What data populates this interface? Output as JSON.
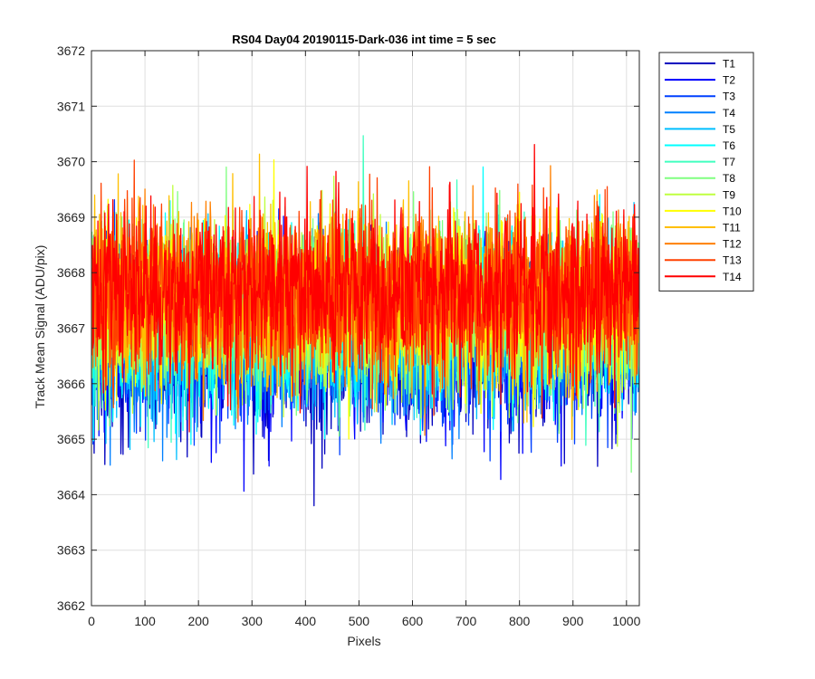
{
  "chart_data": {
    "type": "line",
    "title": "RS04 Day04 20190115-Dark-036 int time = 5 sec",
    "xlabel": "Pixels",
    "ylabel": "Track Mean Signal (ADU/pix)",
    "xlim": [
      0,
      1024
    ],
    "ylim": [
      3662,
      3672
    ],
    "xticks": [
      0,
      100,
      200,
      300,
      400,
      500,
      600,
      700,
      800,
      900,
      1000
    ],
    "yticks": [
      3662,
      3663,
      3664,
      3665,
      3666,
      3667,
      3668,
      3669,
      3670,
      3671,
      3672
    ],
    "grid": true,
    "legend_position": "outside-top-right",
    "x": {
      "start": 1,
      "end": 1024,
      "step": 1
    },
    "series": [
      {
        "name": "T1",
        "color": "#0000bf",
        "mean": 3666.6,
        "noise_sd": 0.75,
        "min": 3663.4,
        "max": 3669.5
      },
      {
        "name": "T2",
        "color": "#0000ff",
        "mean": 3666.7,
        "noise_sd": 0.75,
        "min": 3662.95,
        "max": 3669.6
      },
      {
        "name": "T3",
        "color": "#0040ff",
        "mean": 3666.8,
        "noise_sd": 0.75,
        "min": 3663.6,
        "max": 3669.8
      },
      {
        "name": "T4",
        "color": "#0080ff",
        "mean": 3666.9,
        "noise_sd": 0.75,
        "min": 3663.8,
        "max": 3670.5
      },
      {
        "name": "T5",
        "color": "#00bfff",
        "mean": 3667.0,
        "noise_sd": 0.75,
        "min": 3664.0,
        "max": 3671.0
      },
      {
        "name": "T6",
        "color": "#00ffff",
        "mean": 3667.1,
        "noise_sd": 0.75,
        "min": 3663.55,
        "max": 3670.75
      },
      {
        "name": "T7",
        "color": "#40ffbf",
        "mean": 3667.2,
        "noise_sd": 0.75,
        "min": 3664.2,
        "max": 3670.6
      },
      {
        "name": "T8",
        "color": "#80ff80",
        "mean": 3667.3,
        "noise_sd": 0.75,
        "min": 3664.4,
        "max": 3670.5
      },
      {
        "name": "T9",
        "color": "#bfff40",
        "mean": 3667.4,
        "noise_sd": 0.75,
        "min": 3664.5,
        "max": 3670.8
      },
      {
        "name": "T10",
        "color": "#ffff00",
        "mean": 3667.5,
        "noise_sd": 0.75,
        "min": 3664.6,
        "max": 3671.0
      },
      {
        "name": "T11",
        "color": "#ffbf00",
        "mean": 3667.55,
        "noise_sd": 0.75,
        "min": 3664.3,
        "max": 3671.0
      },
      {
        "name": "T12",
        "color": "#ff8000",
        "mean": 3667.6,
        "noise_sd": 0.75,
        "min": 3664.4,
        "max": 3671.1
      },
      {
        "name": "T13",
        "color": "#ff4000",
        "mean": 3667.65,
        "noise_sd": 0.75,
        "min": 3664.6,
        "max": 3670.9
      },
      {
        "name": "T14",
        "color": "#ff0000",
        "mean": 3667.7,
        "noise_sd": 0.75,
        "min": 3665.0,
        "max": 3671.25
      }
    ]
  }
}
